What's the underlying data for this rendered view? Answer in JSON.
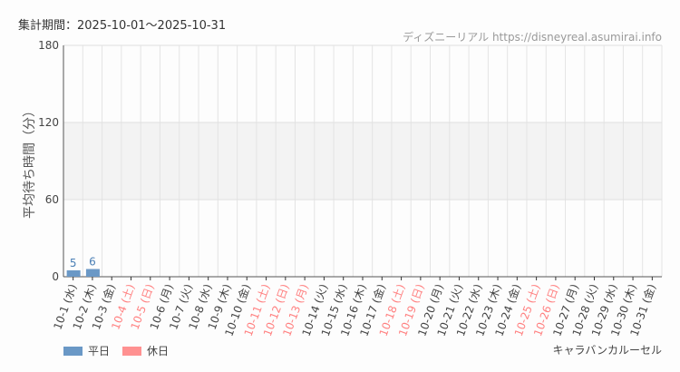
{
  "header": {
    "period": "集計期間：2025-10-01〜2025-10-31",
    "credit": "ディズニーリアル https://disneyreal.asumirai.info"
  },
  "footer": {
    "attraction": "キャラバンカルーセル"
  },
  "chart_data": {
    "type": "bar",
    "ylabel": "平均待ち時間（分）",
    "xlabel": "",
    "ylim": [
      0,
      180
    ],
    "yticks": [
      0,
      60,
      120,
      180
    ],
    "shaded_band": [
      60,
      120
    ],
    "grid": true,
    "legend_placement": "bottom-left",
    "legend": [
      {
        "name": "平日",
        "color": "#6a98c6"
      },
      {
        "name": "休日",
        "color": "#ff9191"
      }
    ],
    "categories": [
      "10-1 (水)",
      "10-2 (木)",
      "10-3 (金)",
      "10-4 (土)",
      "10-5 (日)",
      "10-6 (月)",
      "10-7 (火)",
      "10-8 (水)",
      "10-9 (木)",
      "10-10 (金)",
      "10-11 (土)",
      "10-12 (日)",
      "10-13 (月)",
      "10-14 (火)",
      "10-15 (水)",
      "10-16 (木)",
      "10-17 (金)",
      "10-18 (土)",
      "10-19 (日)",
      "10-20 (月)",
      "10-21 (火)",
      "10-22 (水)",
      "10-23 (木)",
      "10-24 (金)",
      "10-25 (土)",
      "10-26 (日)",
      "10-27 (月)",
      "10-28 (火)",
      "10-29 (水)",
      "10-30 (木)",
      "10-31 (金)"
    ],
    "holiday": [
      false,
      false,
      false,
      true,
      true,
      false,
      false,
      false,
      false,
      false,
      true,
      true,
      true,
      false,
      false,
      false,
      false,
      true,
      true,
      false,
      false,
      false,
      false,
      false,
      true,
      true,
      false,
      false,
      false,
      false,
      false
    ],
    "values": [
      5,
      6,
      null,
      null,
      null,
      null,
      null,
      null,
      null,
      null,
      null,
      null,
      null,
      null,
      null,
      null,
      null,
      null,
      null,
      null,
      null,
      null,
      null,
      null,
      null,
      null,
      null,
      null,
      null,
      null,
      null
    ]
  }
}
